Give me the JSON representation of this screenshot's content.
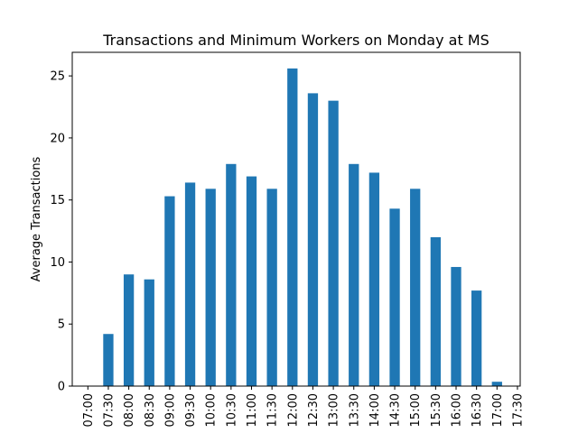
{
  "chart_data": {
    "type": "bar",
    "title": "Transactions and Minimum Workers on Monday at MS",
    "xlabel": "",
    "ylabel": "Average Transactions",
    "categories": [
      "07:00",
      "07:30",
      "08:00",
      "08:30",
      "09:00",
      "09:30",
      "10:00",
      "10:30",
      "11:00",
      "11:30",
      "12:00",
      "12:30",
      "13:00",
      "13:30",
      "14:00",
      "14:30",
      "15:00",
      "15:30",
      "16:00",
      "16:30",
      "17:00",
      "17:30"
    ],
    "values": [
      0,
      4.2,
      9.0,
      8.6,
      15.3,
      16.4,
      15.9,
      17.9,
      16.9,
      15.9,
      25.6,
      23.6,
      23.0,
      17.9,
      17.2,
      14.3,
      15.9,
      12.0,
      9.6,
      7.7,
      0.35,
      0
    ],
    "ylim": [
      0,
      26.9
    ],
    "yticks": [
      0,
      5,
      10,
      15,
      20,
      25
    ],
    "bar_color": "#1f77b4",
    "grid": false,
    "legend": "none"
  }
}
